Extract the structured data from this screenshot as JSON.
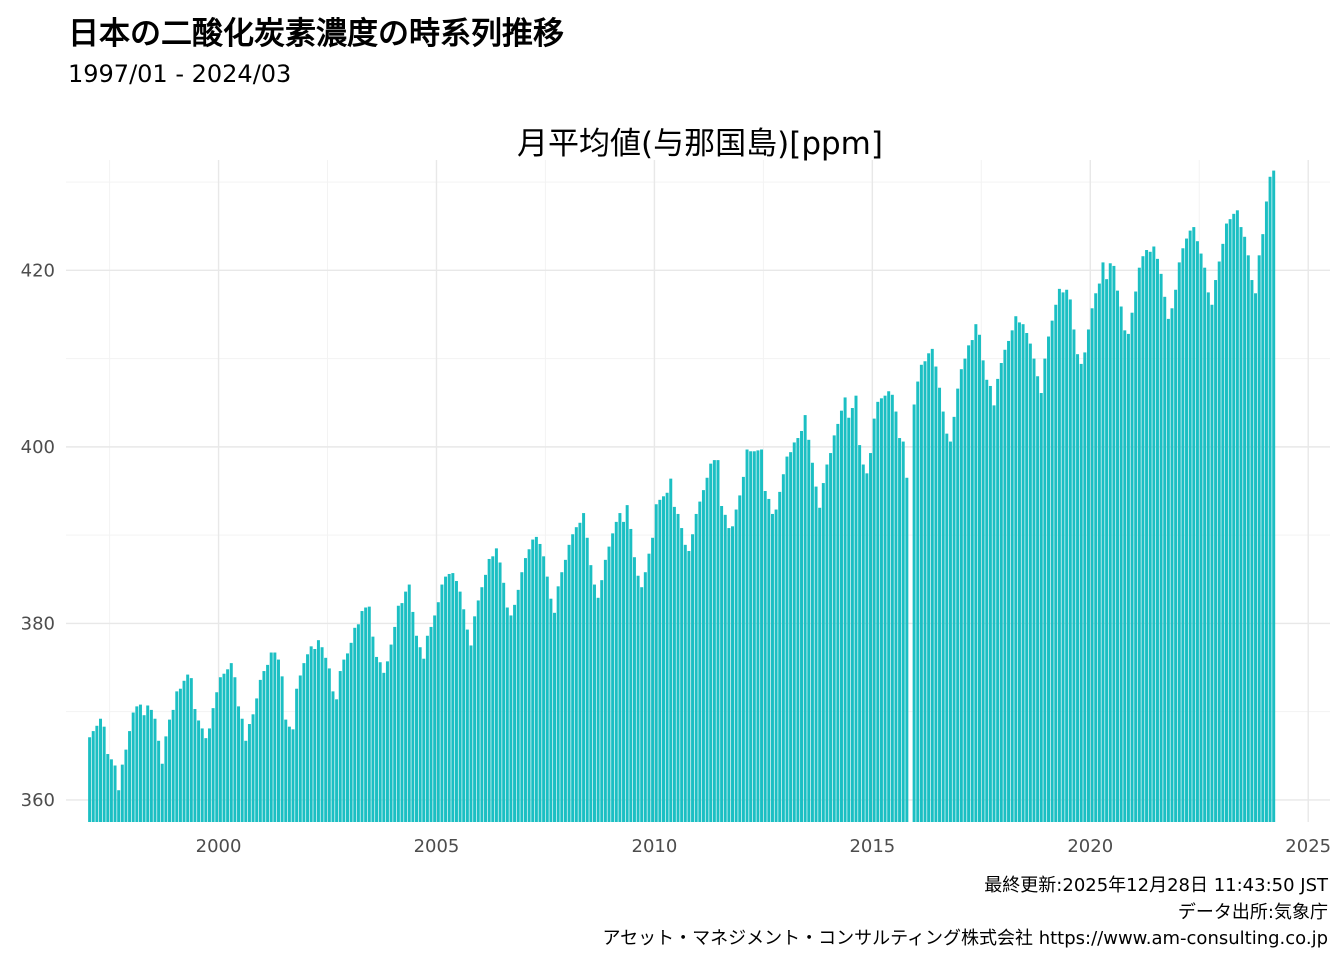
{
  "header": {
    "title": "日本の二酸化炭素濃度の時系列推移",
    "subtitle": "1997/01 - 2024/03"
  },
  "footer": {
    "last_updated": "最終更新:2025年12月28日 11:43:50 JST",
    "source": "データ出所:気象庁",
    "credit": "アセット・マネジメント・コンサルティング株式会社 https://www.am-consulting.co.jp"
  },
  "colors": {
    "bar": "#1bbfc3",
    "grid_major": "#e8e8e8",
    "grid_minor": "#f3f3f3"
  },
  "chart_data": {
    "type": "bar",
    "title": "月平均値(与那国島)[ppm]",
    "xlabel": "",
    "ylabel": "",
    "x_unit": "year",
    "x_range": [
      1996.5,
      2025.5
    ],
    "ylim": [
      357.5,
      432.5
    ],
    "x_ticks": [
      2000,
      2005,
      2010,
      2015,
      2020,
      2025
    ],
    "y_ticks": [
      360,
      380,
      400,
      420
    ],
    "grid": true,
    "start_month": "1997-01",
    "end_month": "2024-03",
    "missing_months": [
      "2015-11"
    ],
    "yearly_values": [
      {
        "year": 1997,
        "values": [
          367.1,
          367.8,
          368.4,
          369.2,
          368.3,
          365.2,
          364.6,
          363.9,
          361.1,
          364.0,
          365.7,
          367.8
        ]
      },
      {
        "year": 1998,
        "values": [
          369.9,
          370.6,
          370.8,
          369.6,
          370.7,
          370.2,
          369.2,
          366.7,
          364.1,
          367.2,
          369.1,
          370.2
        ]
      },
      {
        "year": 1999,
        "values": [
          372.3,
          372.6,
          373.5,
          374.2,
          373.8,
          370.3,
          369.0,
          368.1,
          367.0,
          368.1,
          370.4,
          372.2
        ]
      },
      {
        "year": 2000,
        "values": [
          373.9,
          374.3,
          374.8,
          375.5,
          373.9,
          370.6,
          369.2,
          366.7,
          368.6,
          369.7,
          371.5,
          373.6
        ]
      },
      {
        "year": 2001,
        "values": [
          374.6,
          375.3,
          376.7,
          376.7,
          375.9,
          374.0,
          369.1,
          368.3,
          368.0,
          372.6,
          374.1,
          375.5
        ]
      },
      {
        "year": 2002,
        "values": [
          376.5,
          377.4,
          377.1,
          378.1,
          377.3,
          376.1,
          374.9,
          372.3,
          371.4,
          374.6,
          375.9,
          376.6
        ]
      },
      {
        "year": 2003,
        "values": [
          377.8,
          379.5,
          379.9,
          381.4,
          381.8,
          381.9,
          378.5,
          376.2,
          375.6,
          374.4,
          375.7,
          377.6
        ]
      },
      {
        "year": 2004,
        "values": [
          379.6,
          382.0,
          382.3,
          383.6,
          384.4,
          381.3,
          378.6,
          377.3,
          376.0,
          378.6,
          379.6,
          380.9
        ]
      },
      {
        "year": 2005,
        "values": [
          382.4,
          384.4,
          385.3,
          385.6,
          385.7,
          384.8,
          383.6,
          381.6,
          379.3,
          377.5,
          380.8,
          382.6
        ]
      },
      {
        "year": 2006,
        "values": [
          384.1,
          385.5,
          387.3,
          387.6,
          388.5,
          386.9,
          384.6,
          381.8,
          380.9,
          382.1,
          383.8,
          385.8
        ]
      },
      {
        "year": 2007,
        "values": [
          387.4,
          388.4,
          389.5,
          389.8,
          389.0,
          387.6,
          385.3,
          382.8,
          381.2,
          384.2,
          385.8,
          387.2
        ]
      },
      {
        "year": 2008,
        "values": [
          388.9,
          390.1,
          390.9,
          391.4,
          392.5,
          389.7,
          386.6,
          384.4,
          382.9,
          384.9,
          387.2,
          388.7
        ]
      },
      {
        "year": 2009,
        "values": [
          390.2,
          391.5,
          392.5,
          391.5,
          393.4,
          390.7,
          387.5,
          385.4,
          384.1,
          385.8,
          387.9,
          389.7
        ]
      },
      {
        "year": 2010,
        "values": [
          393.5,
          394.0,
          394.4,
          394.8,
          396.4,
          393.2,
          392.4,
          390.8,
          388.9,
          388.2,
          390.1,
          392.4
        ]
      },
      {
        "year": 2011,
        "values": [
          393.8,
          395.1,
          396.5,
          398.1,
          398.5,
          398.5,
          393.3,
          392.3,
          390.8,
          391.0,
          392.9,
          394.5
        ]
      },
      {
        "year": 2012,
        "values": [
          396.6,
          399.7,
          399.5,
          399.5,
          399.6,
          399.7,
          395.0,
          394.1,
          392.4,
          392.9,
          394.9,
          396.9
        ]
      },
      {
        "year": 2013,
        "values": [
          398.9,
          399.4,
          400.5,
          401.0,
          401.8,
          403.6,
          400.8,
          398.2,
          395.5,
          393.1,
          395.9,
          398.0
        ]
      },
      {
        "year": 2014,
        "values": [
          399.3,
          401.3,
          402.6,
          404.1,
          405.6,
          403.3,
          404.4,
          405.8,
          400.2,
          398.0,
          397.0,
          399.3
        ]
      },
      {
        "year": 2015,
        "values": [
          403.2,
          405.1,
          405.5,
          405.8,
          406.3,
          405.9,
          404.0,
          401.0,
          400.6,
          396.5,
          null,
          404.8
        ]
      },
      {
        "year": 2016,
        "values": [
          407.4,
          409.3,
          409.7,
          410.6,
          411.1,
          409.1,
          406.7,
          404.0,
          401.5,
          400.6,
          403.4,
          406.6
        ]
      },
      {
        "year": 2017,
        "values": [
          408.8,
          410.0,
          411.5,
          412.1,
          413.9,
          412.7,
          409.8,
          407.6,
          406.9,
          404.7,
          407.7,
          409.5
        ]
      },
      {
        "year": 2018,
        "values": [
          411.0,
          412.0,
          413.2,
          414.8,
          414.1,
          413.9,
          412.9,
          411.7,
          410.0,
          408.0,
          406.1,
          410.0
        ]
      },
      {
        "year": 2019,
        "values": [
          412.5,
          414.3,
          416.1,
          417.9,
          417.5,
          417.8,
          416.7,
          413.3,
          410.5,
          409.4,
          410.7,
          413.3
        ]
      },
      {
        "year": 2020,
        "values": [
          415.7,
          417.4,
          418.5,
          420.9,
          419.0,
          420.8,
          420.5,
          417.7,
          415.9,
          413.2,
          412.8,
          415.2
        ]
      },
      {
        "year": 2021,
        "values": [
          417.6,
          420.3,
          421.6,
          422.3,
          422.1,
          422.7,
          421.3,
          419.6,
          417.0,
          414.5,
          415.7,
          417.8
        ]
      },
      {
        "year": 2022,
        "values": [
          420.9,
          422.5,
          423.6,
          424.5,
          424.9,
          423.3,
          421.9,
          420.3,
          417.5,
          416.1,
          418.9,
          421.0
        ]
      },
      {
        "year": 2023,
        "values": [
          423.0,
          425.3,
          425.8,
          426.4,
          426.8,
          424.9,
          423.8,
          421.7,
          418.9,
          417.4,
          421.7,
          424.1
        ]
      },
      {
        "year": 2024,
        "values": [
          427.8,
          430.6,
          431.3
        ]
      }
    ]
  }
}
